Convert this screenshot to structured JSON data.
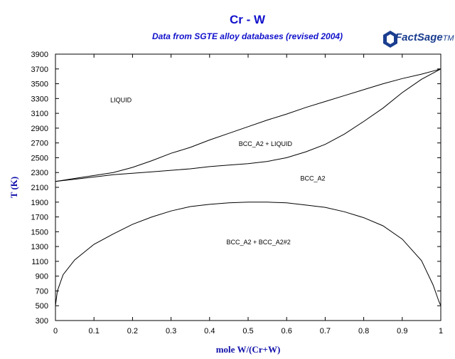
{
  "chart_data": {
    "type": "line",
    "title": "Cr - W",
    "subtitle": "Data from SGTE alloy databases (revised 2004)",
    "xlabel": "mole W/(Cr+W)",
    "ylabel": "T (K)",
    "xlim": [
      0,
      1
    ],
    "ylim": [
      300,
      3900
    ],
    "x_ticks": [
      "0",
      "0.1",
      "0.2",
      "0.3",
      "0.4",
      "0.5",
      "0.6",
      "0.7",
      "0.8",
      "0.9",
      "1"
    ],
    "y_ticks": [
      "300",
      "500",
      "700",
      "900",
      "1100",
      "1300",
      "1500",
      "1700",
      "1900",
      "2100",
      "2300",
      "2500",
      "2700",
      "2900",
      "3100",
      "3300",
      "3500",
      "3700",
      "3900"
    ],
    "grid": false,
    "series": [
      {
        "points": [
          [
            0,
            2180
          ],
          [
            0.05,
            2220
          ],
          [
            0.1,
            2260
          ],
          [
            0.15,
            2300
          ],
          [
            0.2,
            2370
          ],
          [
            0.25,
            2460
          ],
          [
            0.3,
            2560
          ],
          [
            0.35,
            2640
          ],
          [
            0.4,
            2740
          ],
          [
            0.45,
            2830
          ],
          [
            0.5,
            2920
          ],
          [
            0.55,
            3010
          ],
          [
            0.6,
            3090
          ],
          [
            0.65,
            3180
          ],
          [
            0.7,
            3260
          ],
          [
            0.75,
            3340
          ],
          [
            0.8,
            3420
          ],
          [
            0.85,
            3500
          ],
          [
            0.9,
            3570
          ],
          [
            0.95,
            3630
          ],
          [
            1.0,
            3700
          ]
        ]
      },
      {
        "points": [
          [
            0,
            2180
          ],
          [
            0.05,
            2210
          ],
          [
            0.1,
            2240
          ],
          [
            0.15,
            2270
          ],
          [
            0.2,
            2290
          ],
          [
            0.25,
            2310
          ],
          [
            0.3,
            2330
          ],
          [
            0.35,
            2350
          ],
          [
            0.4,
            2380
          ],
          [
            0.45,
            2400
          ],
          [
            0.5,
            2420
          ],
          [
            0.55,
            2450
          ],
          [
            0.6,
            2500
          ],
          [
            0.65,
            2580
          ],
          [
            0.7,
            2680
          ],
          [
            0.75,
            2820
          ],
          [
            0.8,
            2990
          ],
          [
            0.85,
            3170
          ],
          [
            0.9,
            3380
          ],
          [
            0.95,
            3560
          ],
          [
            1.0,
            3700
          ]
        ]
      },
      {
        "points": [
          [
            0,
            500
          ],
          [
            0.005,
            700
          ],
          [
            0.02,
            920
          ],
          [
            0.05,
            1120
          ],
          [
            0.1,
            1330
          ],
          [
            0.15,
            1470
          ],
          [
            0.2,
            1600
          ],
          [
            0.25,
            1700
          ],
          [
            0.3,
            1780
          ],
          [
            0.35,
            1840
          ],
          [
            0.4,
            1870
          ],
          [
            0.45,
            1890
          ],
          [
            0.5,
            1900
          ],
          [
            0.55,
            1900
          ],
          [
            0.6,
            1890
          ],
          [
            0.65,
            1860
          ],
          [
            0.7,
            1830
          ],
          [
            0.75,
            1770
          ],
          [
            0.8,
            1690
          ],
          [
            0.85,
            1580
          ],
          [
            0.9,
            1400
          ],
          [
            0.95,
            1110
          ],
          [
            0.98,
            780
          ],
          [
            0.995,
            560
          ],
          [
            1.0,
            500
          ]
        ]
      }
    ],
    "annotations": [
      {
        "text": "LIQUID",
        "x": 0.17,
        "y": 3250
      },
      {
        "text": "BCC_A2 + LIQUID",
        "x": 0.545,
        "y": 2660
      },
      {
        "text": "BCC_A2",
        "x": 0.668,
        "y": 2190
      },
      {
        "text": "BCC_A2 + BCC_A2#2",
        "x": 0.527,
        "y": 1330
      }
    ]
  },
  "logo": {
    "name": "FactSage",
    "mark": "TM"
  }
}
